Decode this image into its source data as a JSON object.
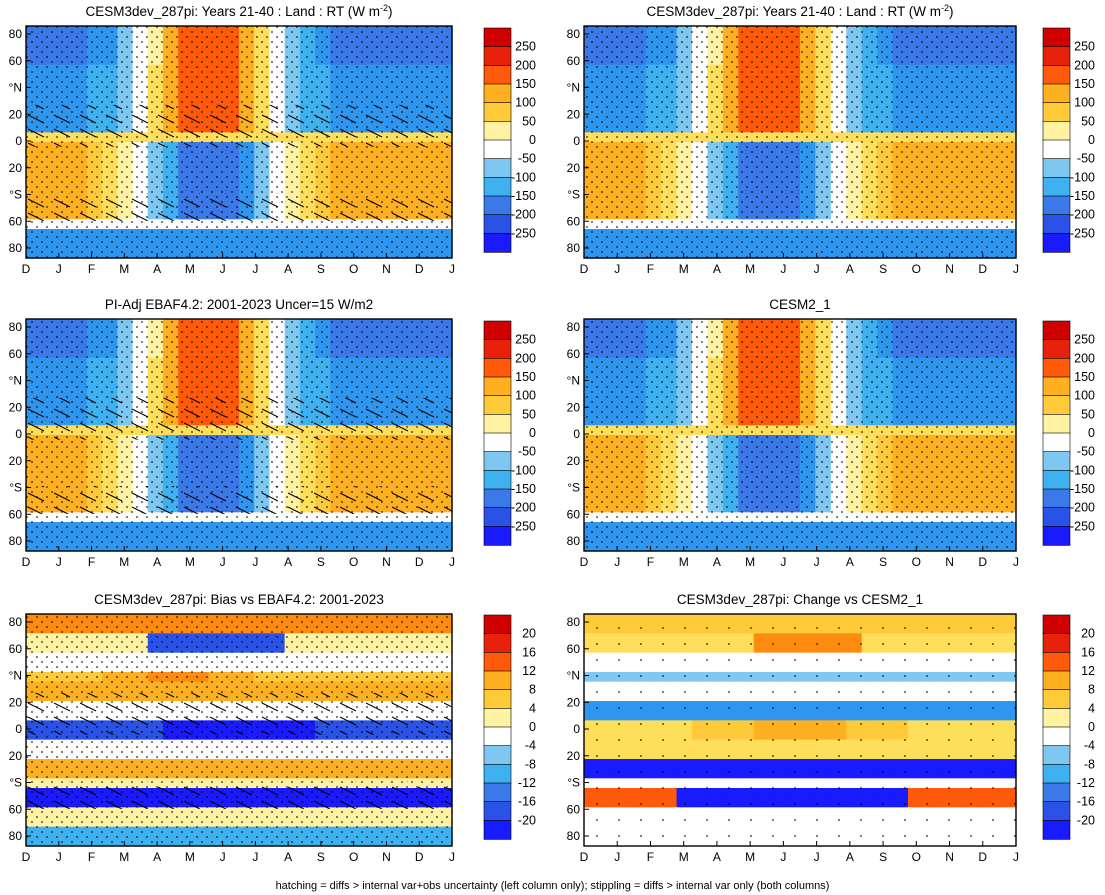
{
  "figure": {
    "footnote": "hatching = diffs > internal var+obs uncertainty (left column only); stippling = diffs > internal var only (both columns)"
  },
  "chart_data": [
    {
      "type": "heatmap",
      "title": "CESM3dev_287pi: Years 21-40 : Land : RT (W m",
      "title_sup": "-2",
      "title_tail": ")",
      "x_ticks": [
        "D",
        "J",
        "F",
        "M",
        "A",
        "M",
        "J",
        "J",
        "A",
        "S",
        "O",
        "N",
        "D",
        "J"
      ],
      "y_ticks": [
        "80",
        "60",
        "°N",
        "20",
        "0",
        "20",
        "°S",
        "60",
        "80"
      ],
      "colorbar": [
        250,
        200,
        150,
        100,
        50,
        0,
        -50,
        -100,
        -150,
        -200,
        -250
      ],
      "pattern": "abs",
      "hatch": true
    },
    {
      "type": "heatmap",
      "title": "CESM3dev_287pi: Years 21-40 : Land : RT (W m",
      "title_sup": "-2",
      "title_tail": ")",
      "x_ticks": [
        "D",
        "J",
        "F",
        "M",
        "A",
        "M",
        "J",
        "J",
        "A",
        "S",
        "O",
        "N",
        "D",
        "J"
      ],
      "y_ticks": [
        "80",
        "60",
        "°N",
        "20",
        "0",
        "20",
        "°S",
        "60",
        "80"
      ],
      "colorbar": [
        250,
        200,
        150,
        100,
        50,
        0,
        -50,
        -100,
        -150,
        -200,
        -250
      ],
      "pattern": "abs",
      "hatch": false
    },
    {
      "type": "heatmap",
      "title": "PI-Adj EBAF4.2: 2001-2023 Uncer=15 W/m2",
      "x_ticks": [
        "D",
        "J",
        "F",
        "M",
        "A",
        "M",
        "J",
        "J",
        "A",
        "S",
        "O",
        "N",
        "D",
        "J"
      ],
      "y_ticks": [
        "80",
        "60",
        "°N",
        "20",
        "0",
        "20",
        "°S",
        "60",
        "80"
      ],
      "colorbar": [
        250,
        200,
        150,
        100,
        50,
        0,
        -50,
        -100,
        -150,
        -200,
        -250
      ],
      "pattern": "abs",
      "hatch": true
    },
    {
      "type": "heatmap",
      "title": "CESM2_1",
      "x_ticks": [
        "D",
        "J",
        "F",
        "M",
        "A",
        "M",
        "J",
        "J",
        "A",
        "S",
        "O",
        "N",
        "D",
        "J"
      ],
      "y_ticks": [
        "80",
        "60",
        "°N",
        "20",
        "0",
        "20",
        "°S",
        "60",
        "80"
      ],
      "colorbar": [
        250,
        200,
        150,
        100,
        50,
        0,
        -50,
        -100,
        -150,
        -200,
        -250
      ],
      "pattern": "abs",
      "hatch": false
    },
    {
      "type": "heatmap",
      "title": "CESM3dev_287pi: Bias vs EBAF4.2: 2001-2023",
      "x_ticks": [
        "D",
        "J",
        "F",
        "M",
        "A",
        "M",
        "J",
        "J",
        "A",
        "S",
        "O",
        "N",
        "D",
        "J"
      ],
      "y_ticks": [
        "80",
        "60",
        "°N",
        "20",
        "0",
        "20",
        "°S",
        "60",
        "80"
      ],
      "colorbar": [
        20,
        16,
        12,
        8,
        4,
        0,
        -4,
        -8,
        -12,
        -16,
        -20
      ],
      "pattern": "bias",
      "hatch": true
    },
    {
      "type": "heatmap",
      "title": "CESM3dev_287pi: Change vs CESM2_1",
      "x_ticks": [
        "D",
        "J",
        "F",
        "M",
        "A",
        "M",
        "J",
        "J",
        "A",
        "S",
        "O",
        "N",
        "D",
        "J"
      ],
      "y_ticks": [
        "80",
        "60",
        "°N",
        "20",
        "0",
        "20",
        "°S",
        "60",
        "80"
      ],
      "colorbar": [
        20,
        16,
        12,
        8,
        4,
        0,
        -4,
        -8,
        -12,
        -16,
        -20
      ],
      "pattern": "change",
      "hatch": false
    }
  ],
  "colors": {
    "scale": [
      "#1a1aff",
      "#2a52e6",
      "#3b78e8",
      "#2f96f0",
      "#3fb1f0",
      "#7ec7f0",
      "#ffffff",
      "#ffffff",
      "#fff2a3",
      "#ffde5c",
      "#ffca3a",
      "#ffb020",
      "#ff8a10",
      "#ff5a0a",
      "#e8220a",
      "#d00000"
    ]
  }
}
